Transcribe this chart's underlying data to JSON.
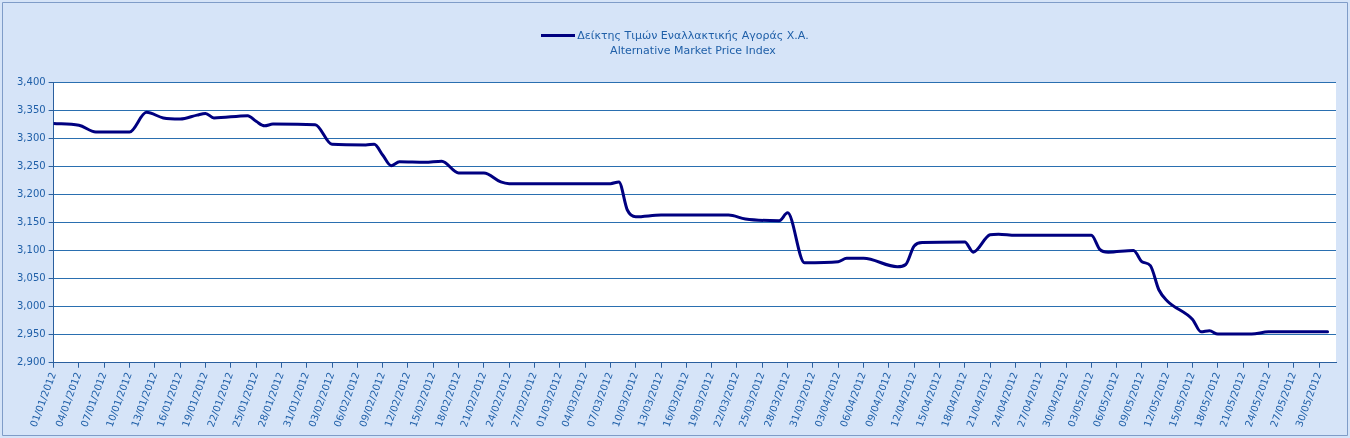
{
  "chart_data": {
    "type": "line",
    "legend": "top",
    "grid": "y",
    "marker": "none",
    "line_style": "solid",
    "ylim": [
      2900,
      3400
    ],
    "yticks": [
      {
        "value": 2900,
        "label": "2,900"
      },
      {
        "value": 2950,
        "label": "2,950"
      },
      {
        "value": 3000,
        "label": "3,000"
      },
      {
        "value": 3050,
        "label": "3,050"
      },
      {
        "value": 3100,
        "label": "3,100"
      },
      {
        "value": 3150,
        "label": "3,150"
      },
      {
        "value": 3200,
        "label": "3,200"
      },
      {
        "value": 3250,
        "label": "3,250"
      },
      {
        "value": 3300,
        "label": "3,300"
      },
      {
        "value": 3350,
        "label": "3,350"
      },
      {
        "value": 3400,
        "label": "3,400"
      }
    ],
    "xlim": [
      "2012-01-01",
      "2012-06-01"
    ],
    "xticks": [
      {
        "value": "2012-01-01",
        "label": "01/01/2012"
      },
      {
        "value": "2012-01-04",
        "label": "04/01/2012"
      },
      {
        "value": "2012-01-07",
        "label": "07/01/2012"
      },
      {
        "value": "2012-01-10",
        "label": "10/01/2012"
      },
      {
        "value": "2012-01-13",
        "label": "13/01/2012"
      },
      {
        "value": "2012-01-16",
        "label": "16/01/2012"
      },
      {
        "value": "2012-01-19",
        "label": "19/01/2012"
      },
      {
        "value": "2012-01-22",
        "label": "22/01/2012"
      },
      {
        "value": "2012-01-25",
        "label": "25/01/2012"
      },
      {
        "value": "2012-01-28",
        "label": "28/01/2012"
      },
      {
        "value": "2012-01-31",
        "label": "31/01/2012"
      },
      {
        "value": "2012-02-03",
        "label": "03/02/2012"
      },
      {
        "value": "2012-02-06",
        "label": "06/02/2012"
      },
      {
        "value": "2012-02-09",
        "label": "09/02/2012"
      },
      {
        "value": "2012-02-12",
        "label": "12/02/2012"
      },
      {
        "value": "2012-02-15",
        "label": "15/02/2012"
      },
      {
        "value": "2012-02-18",
        "label": "18/02/2012"
      },
      {
        "value": "2012-02-21",
        "label": "21/02/2012"
      },
      {
        "value": "2012-02-24",
        "label": "24/02/2012"
      },
      {
        "value": "2012-02-27",
        "label": "27/02/2012"
      },
      {
        "value": "2012-03-01",
        "label": "01/03/2012"
      },
      {
        "value": "2012-03-04",
        "label": "04/03/2012"
      },
      {
        "value": "2012-03-07",
        "label": "07/03/2012"
      },
      {
        "value": "2012-03-10",
        "label": "10/03/2012"
      },
      {
        "value": "2012-03-13",
        "label": "13/03/2012"
      },
      {
        "value": "2012-03-16",
        "label": "16/03/2012"
      },
      {
        "value": "2012-03-19",
        "label": "19/03/2012"
      },
      {
        "value": "2012-03-22",
        "label": "22/03/2012"
      },
      {
        "value": "2012-03-25",
        "label": "25/03/2012"
      },
      {
        "value": "2012-03-28",
        "label": "28/03/2012"
      },
      {
        "value": "2012-03-31",
        "label": "31/03/2012"
      },
      {
        "value": "2012-04-03",
        "label": "03/04/2012"
      },
      {
        "value": "2012-04-06",
        "label": "06/04/2012"
      },
      {
        "value": "2012-04-09",
        "label": "09/04/2012"
      },
      {
        "value": "2012-04-12",
        "label": "12/04/2012"
      },
      {
        "value": "2012-04-15",
        "label": "15/04/2012"
      },
      {
        "value": "2012-04-18",
        "label": "18/04/2012"
      },
      {
        "value": "2012-04-21",
        "label": "21/04/2012"
      },
      {
        "value": "2012-04-24",
        "label": "24/04/2012"
      },
      {
        "value": "2012-04-27",
        "label": "27/04/2012"
      },
      {
        "value": "2012-04-30",
        "label": "30/04/2012"
      },
      {
        "value": "2012-05-03",
        "label": "03/05/2012"
      },
      {
        "value": "2012-05-06",
        "label": "06/05/2012"
      },
      {
        "value": "2012-05-09",
        "label": "09/05/2012"
      },
      {
        "value": "2012-05-12",
        "label": "12/05/2012"
      },
      {
        "value": "2012-05-15",
        "label": "15/05/2012"
      },
      {
        "value": "2012-05-18",
        "label": "18/05/2012"
      },
      {
        "value": "2012-05-21",
        "label": "21/05/2012"
      },
      {
        "value": "2012-05-24",
        "label": "24/05/2012"
      },
      {
        "value": "2012-05-27",
        "label": "27/05/2012"
      },
      {
        "value": "2012-05-30",
        "label": "30/05/2012"
      }
    ],
    "x": [
      "2012-01-01",
      "2012-01-04",
      "2012-01-06",
      "2012-01-10",
      "2012-01-12",
      "2012-01-14",
      "2012-01-16",
      "2012-01-18",
      "2012-01-19",
      "2012-01-20",
      "2012-01-24",
      "2012-01-25",
      "2012-01-26",
      "2012-01-27",
      "2012-02-01",
      "2012-02-03",
      "2012-02-07",
      "2012-02-08",
      "2012-02-09",
      "2012-02-10",
      "2012-02-11",
      "2012-02-14",
      "2012-02-16",
      "2012-02-18",
      "2012-02-21",
      "2012-02-23",
      "2012-02-24",
      "2012-03-07",
      "2012-03-08",
      "2012-03-09",
      "2012-03-10",
      "2012-03-13",
      "2012-03-21",
      "2012-03-23",
      "2012-03-27",
      "2012-03-28",
      "2012-03-30",
      "2012-04-03",
      "2012-04-04",
      "2012-04-06",
      "2012-04-10",
      "2012-04-11",
      "2012-04-12",
      "2012-04-13",
      "2012-04-18",
      "2012-04-19",
      "2012-04-21",
      "2012-04-22",
      "2012-04-24",
      "2012-05-03",
      "2012-05-04",
      "2012-05-05",
      "2012-05-08",
      "2012-05-09",
      "2012-05-10",
      "2012-05-11",
      "2012-05-12",
      "2012-05-15",
      "2012-05-16",
      "2012-05-17",
      "2012-05-18",
      "2012-05-22",
      "2012-05-24",
      "2012-05-31"
    ],
    "series": [
      {
        "name": "Δείκτης Τιμών Εναλλακτικής Αγοράς Χ.Α.\nAlternative Market Price Index",
        "color": "#000080",
        "values": [
          3326,
          3323,
          3311,
          3311,
          3346,
          3336,
          3334,
          3341,
          3344,
          3336,
          3340,
          3330,
          3322,
          3325,
          3324,
          3289,
          3288,
          3289,
          3270,
          3251,
          3258,
          3257,
          3259,
          3238,
          3238,
          3222,
          3219,
          3219,
          3222,
          3172,
          3160,
          3163,
          3163,
          3156,
          3153,
          3167,
          3078,
          3080,
          3086,
          3086,
          3071,
          3075,
          3108,
          3114,
          3115,
          3097,
          3128,
          3129,
          3127,
          3127,
          3102,
          3097,
          3100,
          3080,
          3073,
          3030,
          3010,
          2977,
          2955,
          2957,
          2951,
          2951,
          2955,
          2955
        ]
      }
    ]
  }
}
